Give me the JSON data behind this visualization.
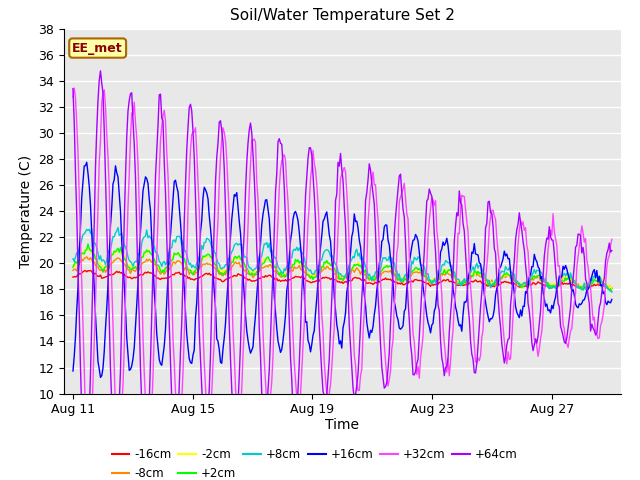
{
  "title": "Soil/Water Temperature Set 2",
  "xlabel": "Time",
  "ylabel": "Temperature (C)",
  "ylim": [
    10,
    38
  ],
  "bg_color": "#e8e8e8",
  "legend_label": "EE_met",
  "series": [
    {
      "label": "-16cm",
      "color": "#ff0000"
    },
    {
      "label": "-8cm",
      "color": "#ff8800"
    },
    {
      "label": "-2cm",
      "color": "#ffff00"
    },
    {
      "label": "+2cm",
      "color": "#00ff00"
    },
    {
      "label": "+8cm",
      "color": "#00cccc"
    },
    {
      "label": "+16cm",
      "color": "#0000ff"
    },
    {
      "label": "+32cm",
      "color": "#ff44ff"
    },
    {
      "label": "+64cm",
      "color": "#aa00ff"
    }
  ],
  "xtick_labels": [
    "Aug 11",
    "Aug 15",
    "Aug 19",
    "Aug 23",
    "Aug 27"
  ],
  "xtick_day_offsets": [
    0,
    4,
    8,
    12,
    16
  ]
}
